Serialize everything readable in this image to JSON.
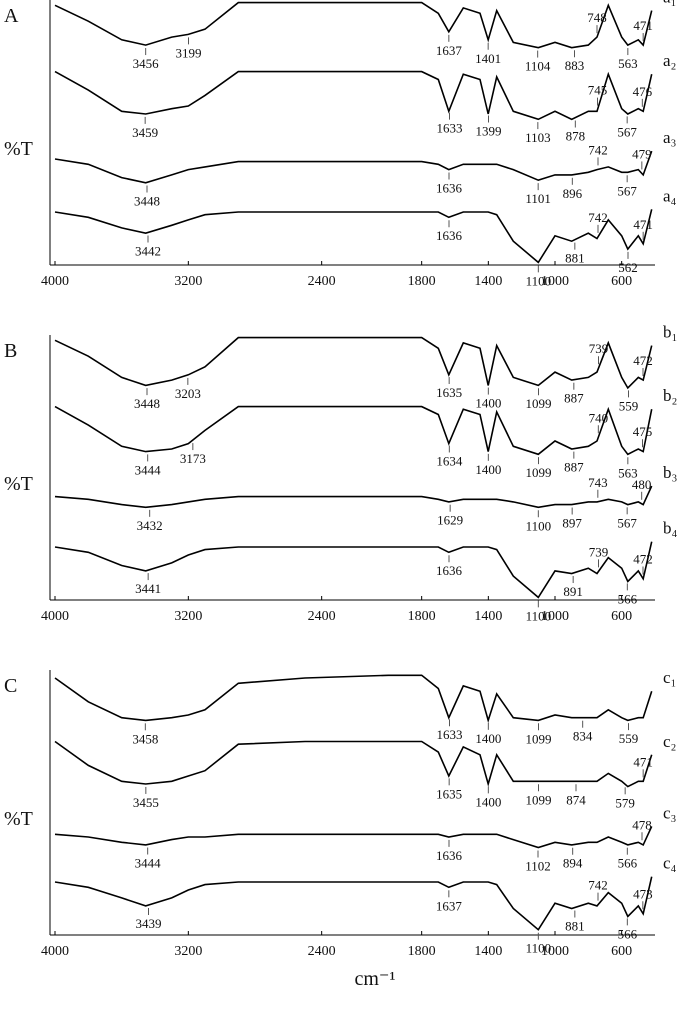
{
  "chart_data": [
    {
      "type": "line",
      "title": "A",
      "ylabel": "%T",
      "xlim": [
        4000,
        400
      ],
      "xticks": [
        4000,
        3200,
        2400,
        1800,
        1400,
        1000,
        600
      ],
      "ylim": [
        0,
        100
      ],
      "x": [
        4000,
        3800,
        3600,
        3456,
        3300,
        3200,
        3100,
        2900,
        2500,
        2000,
        1800,
        1700,
        1637,
        1550,
        1450,
        1401,
        1350,
        1250,
        1100,
        1000,
        900,
        800,
        748,
        680,
        600,
        563,
        500,
        471,
        420
      ],
      "series": [
        {
          "name": "a₁",
          "color": "#000000",
          "values": [
            98,
            92,
            85,
            83,
            86,
            87,
            89,
            99,
            99,
            99,
            99,
            95,
            88,
            97,
            95,
            85,
            96,
            84,
            82,
            84,
            82,
            83,
            86,
            98,
            86,
            83,
            85,
            83,
            96
          ],
          "peaks": [
            3456,
            3199,
            1637,
            1401,
            1104,
            883,
            748,
            563,
            471
          ]
        },
        {
          "name": "a₂",
          "color": "#000000",
          "values": [
            73,
            66,
            58,
            57,
            59,
            60,
            64,
            73,
            73,
            73,
            73,
            70,
            58,
            72,
            70,
            57,
            71,
            58,
            55,
            58,
            55,
            58,
            58,
            72,
            59,
            57,
            59,
            58,
            72
          ],
          "peaks": [
            3459,
            1633,
            1399,
            1103,
            878,
            745,
            567,
            476
          ]
        },
        {
          "name": "a₃",
          "color": "#000000",
          "values": [
            40,
            38,
            33,
            31,
            34,
            36,
            37,
            39,
            39,
            39,
            39,
            38,
            36,
            38,
            38,
            38,
            38,
            36,
            32,
            34,
            34,
            35,
            36,
            37,
            35,
            35,
            36,
            34,
            43
          ],
          "peaks": [
            3448,
            1636,
            1101,
            896,
            742,
            567,
            479
          ]
        },
        {
          "name": "a₄",
          "color": "#000000",
          "values": [
            20,
            18,
            14,
            12,
            15,
            17,
            19,
            20,
            20,
            20,
            20,
            20,
            18,
            20,
            20,
            20,
            19,
            9,
            1,
            11,
            9,
            12,
            10,
            17,
            11,
            6,
            11,
            8,
            21
          ],
          "peaks": [
            3442,
            1636,
            1100,
            881,
            742,
            562,
            471
          ]
        }
      ]
    },
    {
      "type": "line",
      "title": "B",
      "ylabel": "%T",
      "xlim": [
        4000,
        400
      ],
      "xticks": [
        4000,
        3200,
        2400,
        1800,
        1400,
        1000,
        600
      ],
      "ylim": [
        0,
        100
      ],
      "x": [
        4000,
        3800,
        3600,
        3456,
        3300,
        3200,
        3100,
        2900,
        2500,
        2000,
        1800,
        1700,
        1637,
        1550,
        1450,
        1401,
        1350,
        1250,
        1100,
        1000,
        900,
        800,
        748,
        680,
        600,
        563,
        500,
        471,
        420
      ],
      "series": [
        {
          "name": "b₁",
          "color": "#000000",
          "values": [
            98,
            92,
            84,
            81,
            83,
            85,
            88,
            99,
            99,
            99,
            99,
            95,
            85,
            97,
            95,
            81,
            96,
            84,
            81,
            86,
            83,
            84,
            86,
            97,
            84,
            80,
            84,
            83,
            96
          ],
          "peaks": [
            3448,
            3203,
            1635,
            1400,
            1099,
            887,
            739,
            559,
            472
          ]
        },
        {
          "name": "b₂",
          "color": "#000000",
          "values": [
            73,
            66,
            58,
            56,
            57,
            59,
            64,
            73,
            73,
            73,
            73,
            70,
            59,
            72,
            70,
            56,
            71,
            58,
            55,
            60,
            57,
            58,
            60,
            72,
            58,
            55,
            57,
            56,
            72
          ],
          "peaks": [
            3444,
            3173,
            1634,
            1400,
            1099,
            887,
            740,
            563,
            475
          ]
        },
        {
          "name": "b₃",
          "color": "#000000",
          "values": [
            39,
            38,
            36,
            35,
            36,
            37,
            38,
            39,
            39,
            39,
            39,
            38,
            37,
            38,
            38,
            38,
            38,
            37,
            35,
            36,
            36,
            37,
            37,
            38,
            37,
            36,
            37,
            36,
            43
          ],
          "peaks": [
            3432,
            1629,
            1100,
            897,
            743,
            567,
            480
          ]
        },
        {
          "name": "b₄",
          "color": "#000000",
          "values": [
            20,
            18,
            13,
            11,
            14,
            17,
            19,
            20,
            20,
            20,
            20,
            20,
            18,
            20,
            20,
            20,
            19,
            9,
            1,
            11,
            10,
            12,
            10,
            16,
            12,
            7,
            11,
            8,
            22
          ],
          "peaks": [
            3441,
            1636,
            1100,
            891,
            739,
            566,
            472
          ]
        }
      ]
    },
    {
      "type": "line",
      "title": "C",
      "ylabel": "%T",
      "xlabel": "cm⁻¹",
      "xlim": [
        4000,
        400
      ],
      "xticks": [
        4000,
        3200,
        2400,
        1800,
        1400,
        1000,
        600
      ],
      "ylim": [
        0,
        100
      ],
      "x": [
        4000,
        3800,
        3600,
        3456,
        3300,
        3200,
        3100,
        2900,
        2500,
        2000,
        1800,
        1700,
        1637,
        1550,
        1450,
        1401,
        1350,
        1250,
        1100,
        1000,
        900,
        800,
        748,
        680,
        600,
        563,
        500,
        471,
        420
      ],
      "series": [
        {
          "name": "c₁",
          "color": "#000000",
          "values": [
            97,
            88,
            82,
            81,
            82,
            83,
            85,
            95,
            97,
            98,
            98,
            93,
            82,
            94,
            92,
            81,
            91,
            82,
            81,
            83,
            82,
            82,
            82,
            85,
            82,
            81,
            82,
            82,
            92
          ],
          "peaks": [
            3458,
            1633,
            1400,
            1099,
            834,
            559
          ]
        },
        {
          "name": "c₂",
          "color": "#000000",
          "values": [
            73,
            64,
            58,
            57,
            58,
            60,
            62,
            72,
            73,
            73,
            73,
            69,
            60,
            71,
            68,
            57,
            68,
            58,
            58,
            58,
            58,
            58,
            58,
            61,
            58,
            56,
            58,
            58,
            68
          ],
          "peaks": [
            3455,
            1635,
            1400,
            1099,
            874,
            579,
            471
          ]
        },
        {
          "name": "c₃",
          "color": "#000000",
          "values": [
            38,
            37,
            35,
            34,
            36,
            37,
            37,
            38,
            38,
            38,
            38,
            38,
            37,
            38,
            38,
            38,
            38,
            36,
            33,
            35,
            34,
            35,
            35,
            37,
            35,
            34,
            35,
            34,
            41
          ],
          "peaks": [
            3444,
            1636,
            1102,
            894,
            566,
            478
          ]
        },
        {
          "name": "c₄",
          "color": "#000000",
          "values": [
            20,
            18,
            14,
            11,
            14,
            17,
            19,
            20,
            20,
            20,
            20,
            20,
            18,
            20,
            20,
            20,
            19,
            10,
            2,
            12,
            10,
            12,
            11,
            16,
            12,
            7,
            11,
            8,
            22
          ],
          "peaks": [
            3439,
            1637,
            1100,
            881,
            742,
            566,
            473
          ]
        }
      ]
    }
  ]
}
